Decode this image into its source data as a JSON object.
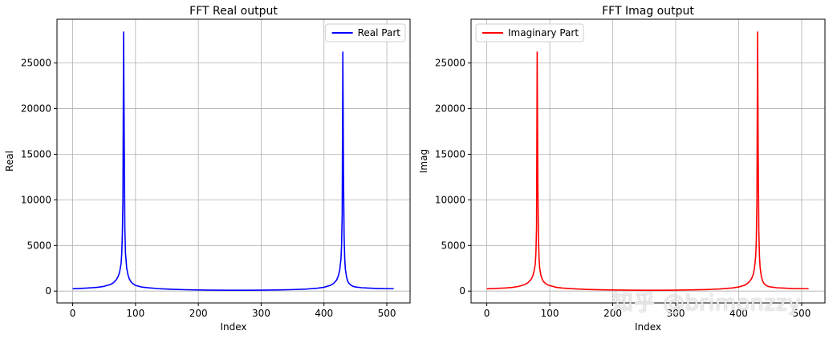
{
  "watermark": "知乎 @brimonzzy",
  "chart_data": [
    {
      "type": "line",
      "title": "FFT Real output",
      "xlabel": "Index",
      "ylabel": "Real",
      "xlim": [
        -25,
        537
      ],
      "ylim": [
        -1300,
        29800
      ],
      "xticks": [
        0,
        100,
        200,
        300,
        400,
        500
      ],
      "yticks": [
        0,
        5000,
        10000,
        15000,
        20000,
        25000
      ],
      "grid": true,
      "legend_position": "top-right",
      "series": [
        {
          "name": "Real Part",
          "color": "#0000ff",
          "x": [
            0,
            10,
            20,
            30,
            40,
            50,
            60,
            65,
            70,
            73,
            75,
            77,
            78,
            79,
            80,
            81,
            82,
            83,
            84,
            86,
            88,
            90,
            93,
            96,
            100,
            110,
            120,
            140,
            160,
            180,
            200,
            225,
            250,
            275,
            300,
            325,
            350,
            370,
            390,
            400,
            410,
            415,
            420,
            423,
            425,
            427,
            428,
            429,
            430,
            431,
            432,
            433,
            434,
            436,
            438,
            440,
            443,
            446,
            450,
            460,
            470,
            480,
            490,
            500,
            511
          ],
          "y": [
            250,
            290,
            320,
            360,
            420,
            520,
            720,
            920,
            1300,
            1700,
            2200,
            3000,
            4000,
            6000,
            10000,
            28400,
            17000,
            7000,
            4200,
            2500,
            1800,
            1350,
            1000,
            800,
            620,
            440,
            360,
            250,
            190,
            150,
            120,
            100,
            90,
            90,
            100,
            120,
            160,
            210,
            320,
            420,
            620,
            820,
            1200,
            1700,
            2300,
            3500,
            5000,
            8500,
            26200,
            13000,
            6000,
            3500,
            2400,
            1500,
            1050,
            820,
            640,
            530,
            450,
            370,
            330,
            300,
            280,
            270,
            260
          ]
        }
      ]
    },
    {
      "type": "line",
      "title": "FFT Imag output",
      "xlabel": "Index",
      "ylabel": "Imag",
      "xlim": [
        -25,
        537
      ],
      "ylim": [
        -1300,
        29800
      ],
      "xticks": [
        0,
        100,
        200,
        300,
        400,
        500
      ],
      "yticks": [
        0,
        5000,
        10000,
        15000,
        20000,
        25000
      ],
      "grid": true,
      "legend_position": "top-left",
      "series": [
        {
          "name": "Imaginary Part",
          "color": "#ff0000",
          "x": [
            0,
            10,
            20,
            30,
            40,
            50,
            60,
            65,
            70,
            73,
            75,
            77,
            78,
            79,
            80,
            81,
            82,
            83,
            84,
            86,
            88,
            90,
            93,
            96,
            100,
            110,
            120,
            140,
            160,
            180,
            200,
            225,
            250,
            275,
            300,
            325,
            350,
            370,
            390,
            400,
            410,
            415,
            420,
            423,
            425,
            427,
            428,
            429,
            430,
            431,
            432,
            433,
            434,
            436,
            438,
            440,
            443,
            446,
            450,
            460,
            470,
            480,
            490,
            500,
            511
          ],
          "y": [
            250,
            280,
            310,
            340,
            400,
            500,
            700,
            900,
            1250,
            1650,
            2150,
            3000,
            4200,
            7000,
            26200,
            12000,
            6000,
            3500,
            2500,
            1700,
            1300,
            1050,
            850,
            700,
            600,
            420,
            330,
            240,
            180,
            140,
            120,
            100,
            90,
            90,
            100,
            130,
            170,
            230,
            340,
            450,
            650,
            900,
            1300,
            1800,
            2500,
            3800,
            5500,
            10000,
            28400,
            15000,
            6500,
            3800,
            2600,
            1600,
            1100,
            850,
            650,
            540,
            460,
            370,
            330,
            300,
            280,
            270,
            260
          ]
        }
      ]
    }
  ]
}
